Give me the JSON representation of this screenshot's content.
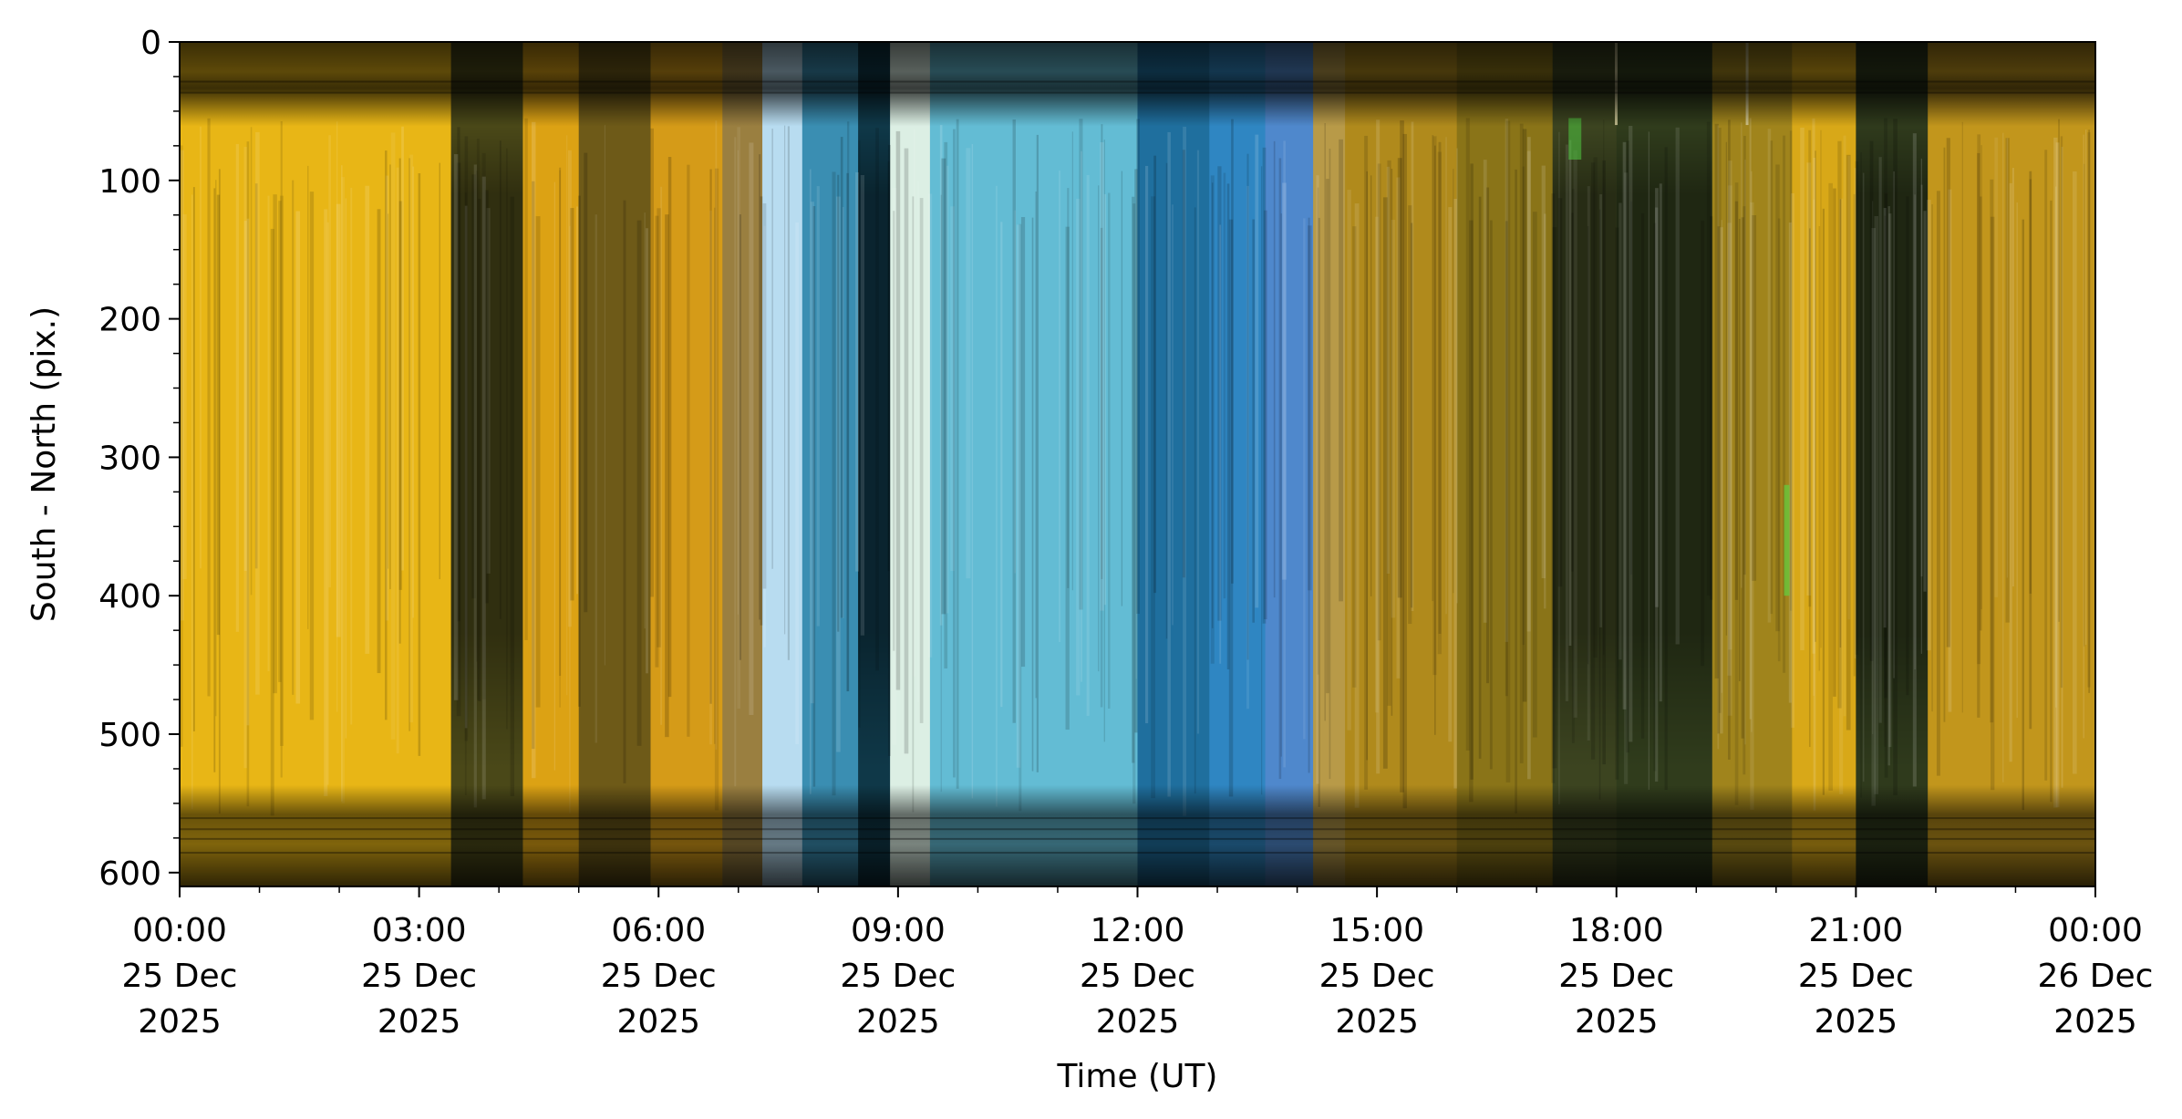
{
  "chart_data": {
    "type": "heatmap",
    "title": "",
    "xlabel": "Time (UT)",
    "ylabel": "South - North (pix.)",
    "xlim": [
      "2025-12-25 00:00",
      "2025-12-26 00:00"
    ],
    "ylim": [
      610,
      0
    ],
    "y_inverted": true,
    "grid": false,
    "x_ticks": [
      {
        "time": "00:00",
        "day": "25 Dec",
        "year": "2025"
      },
      {
        "time": "03:00",
        "day": "25 Dec",
        "year": "2025"
      },
      {
        "time": "06:00",
        "day": "25 Dec",
        "year": "2025"
      },
      {
        "time": "09:00",
        "day": "25 Dec",
        "year": "2025"
      },
      {
        "time": "12:00",
        "day": "25 Dec",
        "year": "2025"
      },
      {
        "time": "15:00",
        "day": "25 Dec",
        "year": "2025"
      },
      {
        "time": "18:00",
        "day": "25 Dec",
        "year": "2025"
      },
      {
        "time": "21:00",
        "day": "25 Dec",
        "year": "2025"
      },
      {
        "time": "00:00",
        "day": "26 Dec",
        "year": "2025"
      }
    ],
    "y_ticks": [
      "0",
      "100",
      "200",
      "300",
      "400",
      "500",
      "600"
    ],
    "y_tick_values": [
      0,
      100,
      200,
      300,
      400,
      500,
      600
    ],
    "bright_band_y": [
      55,
      560
    ],
    "time_segments": [
      {
        "start_h": 0.0,
        "end_h": 3.4,
        "color": "#e8b616",
        "shade": "bright"
      },
      {
        "start_h": 3.4,
        "end_h": 4.3,
        "color": "#4a4818",
        "shade": "dark"
      },
      {
        "start_h": 4.3,
        "end_h": 5.0,
        "color": "#dca214",
        "shade": "bright"
      },
      {
        "start_h": 5.0,
        "end_h": 5.9,
        "color": "#6e5a18",
        "shade": "mid"
      },
      {
        "start_h": 5.9,
        "end_h": 6.8,
        "color": "#d59b18",
        "shade": "bright"
      },
      {
        "start_h": 6.8,
        "end_h": 7.3,
        "color": "#9a7f40",
        "shade": "mid"
      },
      {
        "start_h": 7.3,
        "end_h": 7.8,
        "color": "#b8dcf0",
        "shade": "bright"
      },
      {
        "start_h": 7.8,
        "end_h": 8.5,
        "color": "#3a8eb2",
        "shade": "mid"
      },
      {
        "start_h": 8.5,
        "end_h": 8.9,
        "color": "#0f3848",
        "shade": "dark"
      },
      {
        "start_h": 8.9,
        "end_h": 9.4,
        "color": "#dcefe4",
        "shade": "bright"
      },
      {
        "start_h": 9.4,
        "end_h": 12.0,
        "color": "#63bcd4",
        "shade": "bright"
      },
      {
        "start_h": 12.0,
        "end_h": 12.9,
        "color": "#1f6f9e",
        "shade": "mid"
      },
      {
        "start_h": 12.9,
        "end_h": 13.6,
        "color": "#2f86c2",
        "shade": "mid"
      },
      {
        "start_h": 13.6,
        "end_h": 14.2,
        "color": "#4f88cc",
        "shade": "mid"
      },
      {
        "start_h": 14.2,
        "end_h": 14.6,
        "color": "#b89a48",
        "shade": "mid"
      },
      {
        "start_h": 14.6,
        "end_h": 16.0,
        "color": "#b08a1c",
        "shade": "mid"
      },
      {
        "start_h": 16.0,
        "end_h": 17.2,
        "color": "#8a7418",
        "shade": "mid"
      },
      {
        "start_h": 17.2,
        "end_h": 18.0,
        "color": "#3c4420",
        "shade": "dark"
      },
      {
        "start_h": 18.0,
        "end_h": 19.2,
        "color": "#303c1c",
        "shade": "dark"
      },
      {
        "start_h": 19.2,
        "end_h": 20.2,
        "color": "#a0841c",
        "shade": "mid"
      },
      {
        "start_h": 20.2,
        "end_h": 21.0,
        "color": "#d8a818",
        "shade": "bright"
      },
      {
        "start_h": 21.0,
        "end_h": 21.9,
        "color": "#2f3a1c",
        "shade": "dark"
      },
      {
        "start_h": 21.9,
        "end_h": 24.0,
        "color": "#c2961c",
        "shade": "bright"
      }
    ],
    "edge_colors": {
      "top": "#2a2410",
      "bottom": "#1e1a0c",
      "bottom_blue": "#0c2030"
    }
  }
}
